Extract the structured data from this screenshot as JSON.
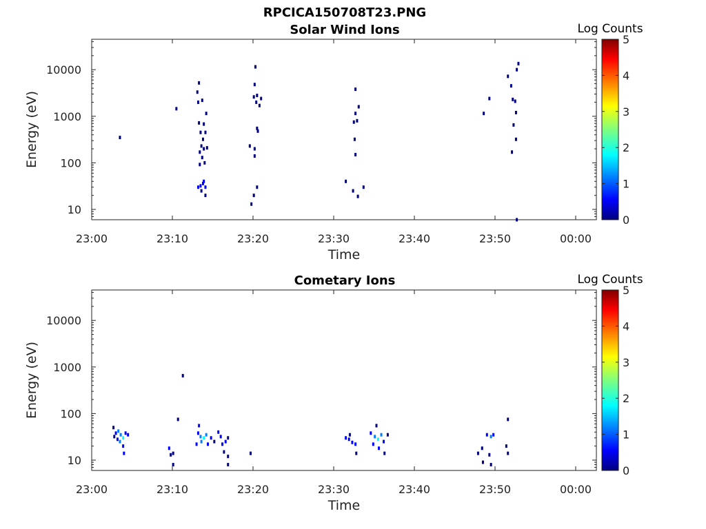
{
  "figure_title": "RPCICA150708T23.PNG",
  "colormap": [
    "#00007f",
    "#0000ff",
    "#007fff",
    "#00ffff",
    "#7fff7f",
    "#ffff00",
    "#ff7f00",
    "#ff0000",
    "#7f0000"
  ],
  "chart_data": [
    {
      "type": "heatmap",
      "title": "Solar Wind Ions",
      "xlabel": "Time",
      "ylabel": "Energy (eV)",
      "x_ticks": [
        "23:00",
        "23:10",
        "23:20",
        "23:30",
        "23:40",
        "23:50",
        "00:00"
      ],
      "y_ticks": [
        "10",
        "100",
        "1000",
        "10000"
      ],
      "y_scale": "log",
      "ylim": [
        6,
        45000
      ],
      "colorbar": {
        "label": "Log Counts",
        "ticks": [
          "0",
          "1",
          "2",
          "3",
          "4",
          "5"
        ],
        "range": [
          0,
          5
        ]
      },
      "points": [
        {
          "t": 3.5,
          "e": 350,
          "v": 0.2
        },
        {
          "t": 10.5,
          "e": 1450,
          "v": 0.2
        },
        {
          "t": 13.3,
          "e": 5200,
          "v": 0.2
        },
        {
          "t": 13.1,
          "e": 3300,
          "v": 0.2
        },
        {
          "t": 13.7,
          "e": 2200,
          "v": 0.2
        },
        {
          "t": 13.2,
          "e": 2000,
          "v": 0.2
        },
        {
          "t": 14.2,
          "e": 1150,
          "v": 0.2
        },
        {
          "t": 13.3,
          "e": 720,
          "v": 0.2
        },
        {
          "t": 13.9,
          "e": 680,
          "v": 0.2
        },
        {
          "t": 13.5,
          "e": 450,
          "v": 0.2
        },
        {
          "t": 14.1,
          "e": 450,
          "v": 0.2
        },
        {
          "t": 13.8,
          "e": 320,
          "v": 0.2
        },
        {
          "t": 13.6,
          "e": 230,
          "v": 0.2
        },
        {
          "t": 14.3,
          "e": 210,
          "v": 0.2
        },
        {
          "t": 13.9,
          "e": 200,
          "v": 0.2
        },
        {
          "t": 13.4,
          "e": 170,
          "v": 0.2
        },
        {
          "t": 13.7,
          "e": 130,
          "v": 0.2
        },
        {
          "t": 14.0,
          "e": 100,
          "v": 0.2
        },
        {
          "t": 13.4,
          "e": 92,
          "v": 0.3
        },
        {
          "t": 13.2,
          "e": 30,
          "v": 0.8
        },
        {
          "t": 13.5,
          "e": 32,
          "v": 1.0
        },
        {
          "t": 13.8,
          "e": 36,
          "v": 0.9
        },
        {
          "t": 14.1,
          "e": 30,
          "v": 0.6
        },
        {
          "t": 13.6,
          "e": 25,
          "v": 0.5
        },
        {
          "t": 13.9,
          "e": 40,
          "v": 0.6
        },
        {
          "t": 14.1,
          "e": 20,
          "v": 0.3
        },
        {
          "t": 20.3,
          "e": 11500,
          "v": 0.2
        },
        {
          "t": 20.2,
          "e": 4800,
          "v": 0.2
        },
        {
          "t": 20.5,
          "e": 2800,
          "v": 0.2
        },
        {
          "t": 20.1,
          "e": 2600,
          "v": 0.2
        },
        {
          "t": 21.0,
          "e": 2400,
          "v": 0.2
        },
        {
          "t": 20.4,
          "e": 2000,
          "v": 0.2
        },
        {
          "t": 20.8,
          "e": 1700,
          "v": 0.2
        },
        {
          "t": 20.5,
          "e": 550,
          "v": 0.2
        },
        {
          "t": 20.6,
          "e": 480,
          "v": 0.2
        },
        {
          "t": 19.6,
          "e": 230,
          "v": 0.2
        },
        {
          "t": 20.2,
          "e": 200,
          "v": 0.2
        },
        {
          "t": 20.2,
          "e": 140,
          "v": 0.2
        },
        {
          "t": 20.5,
          "e": 30,
          "v": 0.2
        },
        {
          "t": 20.1,
          "e": 20,
          "v": 0.2
        },
        {
          "t": 19.8,
          "e": 13,
          "v": 0.2
        },
        {
          "t": 32.7,
          "e": 3800,
          "v": 0.2
        },
        {
          "t": 33.1,
          "e": 1600,
          "v": 0.2
        },
        {
          "t": 32.7,
          "e": 1150,
          "v": 0.2
        },
        {
          "t": 32.9,
          "e": 800,
          "v": 0.2
        },
        {
          "t": 32.5,
          "e": 750,
          "v": 0.2
        },
        {
          "t": 32.6,
          "e": 320,
          "v": 0.2
        },
        {
          "t": 32.7,
          "e": 150,
          "v": 0.2
        },
        {
          "t": 31.5,
          "e": 40,
          "v": 0.2
        },
        {
          "t": 33.7,
          "e": 30,
          "v": 0.2
        },
        {
          "t": 32.4,
          "e": 25,
          "v": 0.2
        },
        {
          "t": 33.0,
          "e": 19,
          "v": 0.2
        },
        {
          "t": 52.9,
          "e": 13500,
          "v": 0.2
        },
        {
          "t": 52.7,
          "e": 10000,
          "v": 0.2
        },
        {
          "t": 51.6,
          "e": 7200,
          "v": 0.2
        },
        {
          "t": 52.0,
          "e": 4500,
          "v": 0.2
        },
        {
          "t": 49.3,
          "e": 2400,
          "v": 0.2
        },
        {
          "t": 52.2,
          "e": 2300,
          "v": 0.2
        },
        {
          "t": 52.5,
          "e": 2100,
          "v": 0.2
        },
        {
          "t": 52.6,
          "e": 1200,
          "v": 0.2
        },
        {
          "t": 48.6,
          "e": 1150,
          "v": 0.2
        },
        {
          "t": 52.3,
          "e": 650,
          "v": 0.2
        },
        {
          "t": 52.6,
          "e": 320,
          "v": 0.2
        },
        {
          "t": 52.1,
          "e": 170,
          "v": 0.2
        },
        {
          "t": 52.7,
          "e": 6,
          "v": 0.2
        }
      ]
    },
    {
      "type": "heatmap",
      "title": "Cometary Ions",
      "xlabel": "Time",
      "ylabel": "Energy (eV)",
      "x_ticks": [
        "23:00",
        "23:10",
        "23:20",
        "23:30",
        "23:40",
        "23:50",
        "00:00"
      ],
      "y_ticks": [
        "10",
        "100",
        "1000",
        "10000"
      ],
      "y_scale": "log",
      "ylim": [
        6,
        45000
      ],
      "colorbar": {
        "label": "Log Counts",
        "ticks": [
          "0",
          "1",
          "2",
          "3",
          "4",
          "5"
        ],
        "range": [
          0,
          5
        ]
      },
      "points": [
        {
          "t": 2.7,
          "e": 50,
          "v": 0.3
        },
        {
          "t": 3.0,
          "e": 38,
          "v": 0.9
        },
        {
          "t": 3.3,
          "e": 42,
          "v": 1.3
        },
        {
          "t": 3.6,
          "e": 35,
          "v": 1.7
        },
        {
          "t": 3.9,
          "e": 30,
          "v": 2.0
        },
        {
          "t": 3.5,
          "e": 25,
          "v": 1.5
        },
        {
          "t": 3.9,
          "e": 20,
          "v": 1.2
        },
        {
          "t": 4.2,
          "e": 38,
          "v": 1.0
        },
        {
          "t": 4.5,
          "e": 35,
          "v": 0.6
        },
        {
          "t": 3.2,
          "e": 28,
          "v": 0.8
        },
        {
          "t": 4.0,
          "e": 14,
          "v": 0.7
        },
        {
          "t": 2.8,
          "e": 32,
          "v": 0.5
        },
        {
          "t": 9.6,
          "e": 18,
          "v": 0.6
        },
        {
          "t": 9.8,
          "e": 13,
          "v": 0.5
        },
        {
          "t": 10.1,
          "e": 14,
          "v": 0.4
        },
        {
          "t": 10.1,
          "e": 8,
          "v": 0.3
        },
        {
          "t": 11.3,
          "e": 650,
          "v": 0.2
        },
        {
          "t": 10.7,
          "e": 75,
          "v": 0.3
        },
        {
          "t": 13.3,
          "e": 55,
          "v": 0.6
        },
        {
          "t": 13.2,
          "e": 38,
          "v": 1.0
        },
        {
          "t": 13.5,
          "e": 32,
          "v": 1.8
        },
        {
          "t": 13.9,
          "e": 30,
          "v": 2.0
        },
        {
          "t": 14.2,
          "e": 35,
          "v": 1.5
        },
        {
          "t": 13.6,
          "e": 25,
          "v": 1.8
        },
        {
          "t": 13.0,
          "e": 22,
          "v": 0.8
        },
        {
          "t": 14.4,
          "e": 22,
          "v": 0.9
        },
        {
          "t": 14.8,
          "e": 30,
          "v": 0.6
        },
        {
          "t": 15.2,
          "e": 25,
          "v": 0.5
        },
        {
          "t": 15.7,
          "e": 40,
          "v": 0.9
        },
        {
          "t": 16.0,
          "e": 32,
          "v": 0.9
        },
        {
          "t": 16.2,
          "e": 22,
          "v": 0.7
        },
        {
          "t": 16.6,
          "e": 25,
          "v": 0.6
        },
        {
          "t": 16.4,
          "e": 15,
          "v": 0.5
        },
        {
          "t": 16.9,
          "e": 12,
          "v": 0.4
        },
        {
          "t": 16.9,
          "e": 30,
          "v": 0.4
        },
        {
          "t": 16.9,
          "e": 8,
          "v": 0.3
        },
        {
          "t": 19.7,
          "e": 14,
          "v": 0.3
        },
        {
          "t": 31.5,
          "e": 30,
          "v": 0.6
        },
        {
          "t": 31.9,
          "e": 28,
          "v": 0.7
        },
        {
          "t": 32.3,
          "e": 24,
          "v": 0.7
        },
        {
          "t": 32.7,
          "e": 22,
          "v": 0.6
        },
        {
          "t": 32.0,
          "e": 35,
          "v": 0.4
        },
        {
          "t": 32.8,
          "e": 14,
          "v": 0.3
        },
        {
          "t": 34.6,
          "e": 38,
          "v": 1.2
        },
        {
          "t": 35.1,
          "e": 32,
          "v": 1.8
        },
        {
          "t": 35.5,
          "e": 28,
          "v": 2.0
        },
        {
          "t": 35.9,
          "e": 35,
          "v": 1.6
        },
        {
          "t": 36.2,
          "e": 25,
          "v": 1.2
        },
        {
          "t": 34.9,
          "e": 22,
          "v": 0.9
        },
        {
          "t": 35.3,
          "e": 55,
          "v": 0.5
        },
        {
          "t": 36.7,
          "e": 35,
          "v": 0.4
        },
        {
          "t": 36.3,
          "e": 14,
          "v": 0.5
        },
        {
          "t": 35.6,
          "e": 18,
          "v": 0.6
        },
        {
          "t": 47.9,
          "e": 14,
          "v": 0.4
        },
        {
          "t": 48.4,
          "e": 18,
          "v": 0.5
        },
        {
          "t": 48.5,
          "e": 9,
          "v": 0.3
        },
        {
          "t": 49.0,
          "e": 35,
          "v": 0.7
        },
        {
          "t": 49.5,
          "e": 32,
          "v": 1.3
        },
        {
          "t": 49.8,
          "e": 35,
          "v": 0.6
        },
        {
          "t": 49.3,
          "e": 13,
          "v": 0.3
        },
        {
          "t": 49.5,
          "e": 8,
          "v": 0.3
        },
        {
          "t": 51.6,
          "e": 75,
          "v": 0.2
        },
        {
          "t": 51.4,
          "e": 20,
          "v": 0.5
        },
        {
          "t": 51.6,
          "e": 14,
          "v": 0.4
        }
      ]
    }
  ]
}
